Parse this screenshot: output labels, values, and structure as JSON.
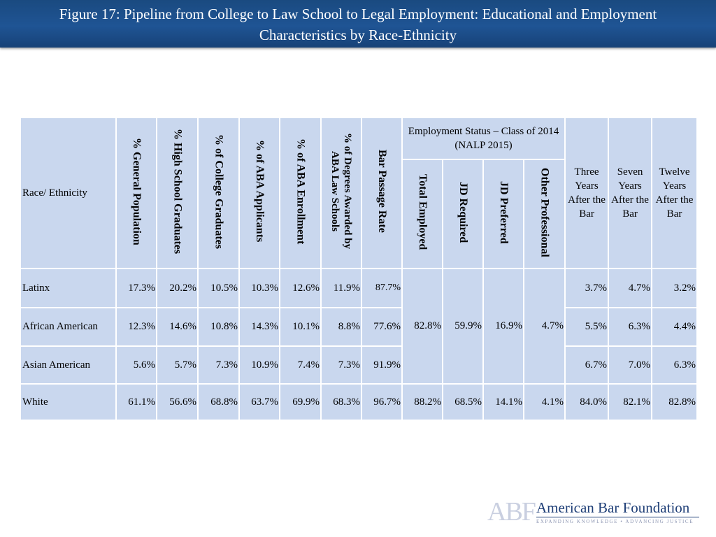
{
  "title": {
    "line1": "Figure 17: Pipeline from College to Law School to Legal Employment: Educational and Employment",
    "line2": "Characteristics by Race-Ethnicity"
  },
  "table": {
    "row_header": "Race/ Ethnicity",
    "columns": {
      "general_population": "% General Population",
      "high_school_graduates": "% High School Graduates",
      "college_graduates": "%  of College Graduates",
      "aba_applicants": "% of ABA Applicants",
      "aba_enrollment": "% of ABA Enrollment",
      "degrees_awarded": "% of Degrees Awarded by ABA Law Schools",
      "bar_passage_rate": "Bar Passage Rate",
      "employment_group": "Employment Status – Class of 2014 (NALP 2015)",
      "total_employed": "Total Employed",
      "jd_required": "JD Required",
      "jd_preferred": "JD Preferred",
      "other_professional": "Other Professional",
      "three_years": "Three Years After the Bar",
      "seven_years": "Seven Years After the Bar",
      "twelve_years": "Twelve Years After the Bar"
    },
    "rows": [
      {
        "name": "Latinx",
        "general_population": "17.3%",
        "high_school_graduates": "20.2%",
        "college_graduates": "10.5%",
        "aba_applicants": "10.3%",
        "aba_enrollment": "12.6%",
        "degrees_awarded": "11.9%",
        "bar_passage_rate": "87.7%",
        "three_years": "3.7%",
        "seven_years": "4.7%",
        "twelve_years": "3.2%"
      },
      {
        "name": "African American",
        "general_population": "12.3%",
        "high_school_graduates": "14.6%",
        "college_graduates": "10.8%",
        "aba_applicants": "14.3%",
        "aba_enrollment": "10.1%",
        "degrees_awarded": "8.8%",
        "bar_passage_rate": "77.6%",
        "three_years": "5.5%",
        "seven_years": "6.3%",
        "twelve_years": "4.4%"
      },
      {
        "name": "Asian American",
        "general_population": "5.6%",
        "high_school_graduates": "5.7%",
        "college_graduates": "7.3%",
        "aba_applicants": "10.9%",
        "aba_enrollment": "7.4%",
        "degrees_awarded": "7.3%",
        "bar_passage_rate": "91.9%",
        "three_years": "6.7%",
        "seven_years": "7.0%",
        "twelve_years": "6.3%"
      },
      {
        "name": "White",
        "general_population": "61.1%",
        "high_school_graduates": "56.6%",
        "college_graduates": "68.8%",
        "aba_applicants": "63.7%",
        "aba_enrollment": "69.9%",
        "degrees_awarded": "68.3%",
        "bar_passage_rate": "96.7%",
        "total_employed": "88.2%",
        "jd_required": "68.5%",
        "jd_preferred": "14.1%",
        "other_professional": "4.1%",
        "three_years": "84.0%",
        "seven_years": "82.1%",
        "twelve_years": "82.8%"
      }
    ],
    "minority_employment": {
      "total_employed": "82.8%",
      "jd_required": "59.9%",
      "jd_preferred": "16.9%",
      "other_professional": "4.7%"
    }
  },
  "logo": {
    "mark": "ABF",
    "name": "American Bar Foundation",
    "tagline": "EXPANDING KNOWLEDGE • ADVANCING JUSTICE"
  },
  "colors": {
    "title_bar": "#1f5494",
    "table_cell": "#c9d7ee",
    "logo_text": "#1f3f77"
  }
}
